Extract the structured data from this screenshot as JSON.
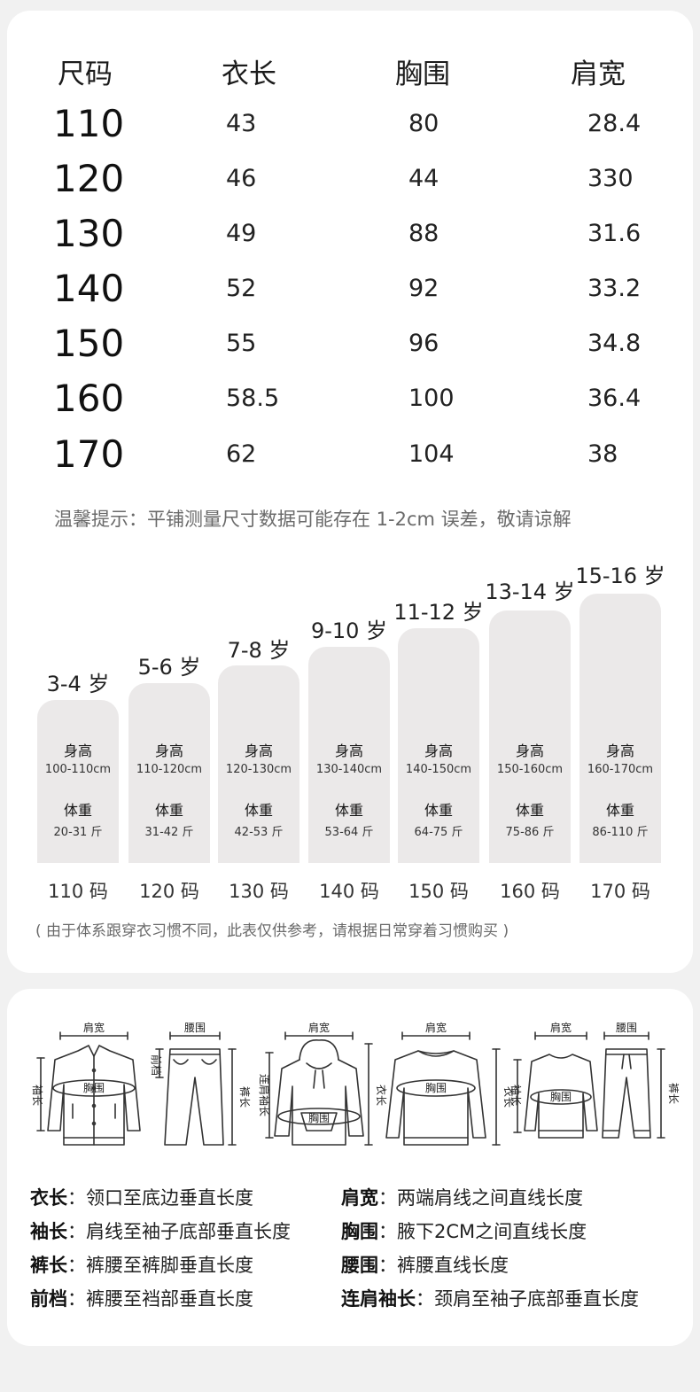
{
  "size_table": {
    "headers": [
      "尺码",
      "衣长",
      "胸围",
      "肩宽"
    ],
    "rows": [
      [
        "110",
        "43",
        "80",
        "28.4"
      ],
      [
        "120",
        "46",
        "44",
        "330"
      ],
      [
        "130",
        "49",
        "88",
        "31.6"
      ],
      [
        "140",
        "52",
        "92",
        "33.2"
      ],
      [
        "150",
        "55",
        "96",
        "34.8"
      ],
      [
        "160",
        "58.5",
        "100",
        "36.4"
      ],
      [
        "170",
        "62",
        "104",
        "38"
      ]
    ]
  },
  "tip": "温馨提示：平铺测量尺寸数据可能存在 1-2cm 误差，敬请谅解",
  "age_chart": {
    "height_label": "身高",
    "weight_label": "体重",
    "columns": [
      {
        "age": "3-4 岁",
        "height": "100-110cm",
        "weight": "20-31 斤",
        "code": "110 码"
      },
      {
        "age": "5-6 岁",
        "height": "110-120cm",
        "weight": "31-42 斤",
        "code": "120 码"
      },
      {
        "age": "7-8 岁",
        "height": "120-130cm",
        "weight": "42-53 斤",
        "code": "130 码"
      },
      {
        "age": "9-10 岁",
        "height": "130-140cm",
        "weight": "53-64 斤",
        "code": "140 码"
      },
      {
        "age": "11-12 岁",
        "height": "140-150cm",
        "weight": "64-75 斤",
        "code": "150 码"
      },
      {
        "age": "13-14 岁",
        "height": "150-160cm",
        "weight": "75-86 斤",
        "code": "160 码"
      },
      {
        "age": "15-16 岁",
        "height": "160-170cm",
        "weight": "86-110 斤",
        "code": "170 码"
      }
    ]
  },
  "note": "( 由于体系跟穿衣习惯不同，此表仅供参考，请根据日常穿着习惯购买 )",
  "garment_labels": {
    "shoulder": "肩宽",
    "waist": "腰围",
    "chest": "胸围",
    "body_length": "衣长",
    "sleeve": "袖长",
    "rise": "前档",
    "pants_length": "裤长",
    "raglan_sleeve": "连肩袖长"
  },
  "definitions": [
    {
      "term": "衣长",
      "desc": "领口至底边垂直长度"
    },
    {
      "term": "肩宽",
      "desc": "两端肩线之间直线长度"
    },
    {
      "term": "袖长",
      "desc": "肩线至袖子底部垂直长度"
    },
    {
      "term": "胸围",
      "desc": "腋下2CM之间直线长度"
    },
    {
      "term": "裤长",
      "desc": "裤腰至裤脚垂直长度"
    },
    {
      "term": "腰围",
      "desc": "裤腰直线长度"
    },
    {
      "term": "前档",
      "desc": "裤腰至裆部垂直长度"
    },
    {
      "term": "连肩袖长",
      "desc": "颈肩至袖子底部垂直长度"
    }
  ],
  "definition_separator": "："
}
